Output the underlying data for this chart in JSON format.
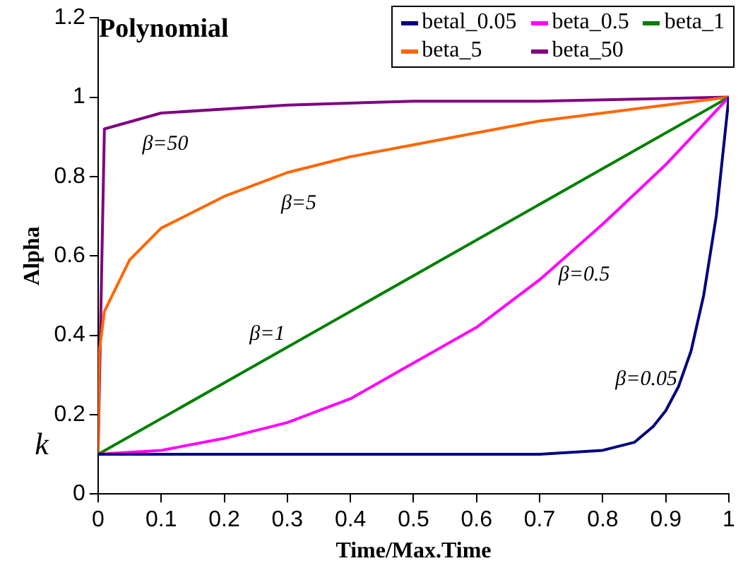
{
  "chart_data": {
    "type": "line",
    "title": "Polynomial",
    "xlabel": "Time/Max.Time",
    "ylabel": "Alpha",
    "xlim": [
      0,
      1
    ],
    "xticks": [
      0,
      0.1,
      0.2,
      0.3,
      0.4,
      0.5,
      0.6,
      0.7,
      0.8,
      0.9,
      1
    ],
    "ylim": [
      0,
      1.2
    ],
    "yticks": [
      0,
      0.2,
      0.4,
      0.6,
      0.8,
      1,
      1.2
    ],
    "grid": false,
    "legend": "top right",
    "marker": "none",
    "line_style": "solid",
    "series": [
      {
        "name": "betal_0.05",
        "color": "#000080",
        "x": [
          0,
          0.7,
          0.8,
          0.85,
          0.88,
          0.9,
          0.92,
          0.94,
          0.96,
          0.98,
          1
        ],
        "values": [
          0.1,
          0.1,
          0.11,
          0.13,
          0.17,
          0.21,
          0.27,
          0.36,
          0.5,
          0.7,
          1
        ]
      },
      {
        "name": "beta_0.5",
        "color": "#ff00ff",
        "x": [
          0,
          0.1,
          0.2,
          0.3,
          0.4,
          0.5,
          0.6,
          0.7,
          0.8,
          0.9,
          1
        ],
        "values": [
          0.1,
          0.11,
          0.14,
          0.18,
          0.24,
          0.33,
          0.42,
          0.54,
          0.68,
          0.83,
          1
        ]
      },
      {
        "name": "beta_1",
        "color": "#008000",
        "x": [
          0,
          1
        ],
        "values": [
          0.1,
          1
        ]
      },
      {
        "name": "beta_5",
        "color": "#ff6600",
        "x": [
          0,
          0.002,
          0.01,
          0.05,
          0.1,
          0.2,
          0.3,
          0.4,
          0.5,
          0.6,
          0.7,
          0.8,
          0.9,
          1
        ],
        "values": [
          0.1,
          0.36,
          0.46,
          0.59,
          0.67,
          0.75,
          0.81,
          0.85,
          0.88,
          0.91,
          0.94,
          0.96,
          0.98,
          1
        ]
      },
      {
        "name": "beta_50",
        "color": "#800080",
        "x": [
          0,
          0.01,
          0.1,
          0.3,
          0.5,
          0.7,
          1
        ],
        "values": [
          0.1,
          0.92,
          0.96,
          0.98,
          0.99,
          0.99,
          1
        ]
      }
    ],
    "annotations": [
      "β=50",
      "β=5",
      "β=1",
      "β=0.5",
      "β=0.05",
      "k"
    ]
  }
}
